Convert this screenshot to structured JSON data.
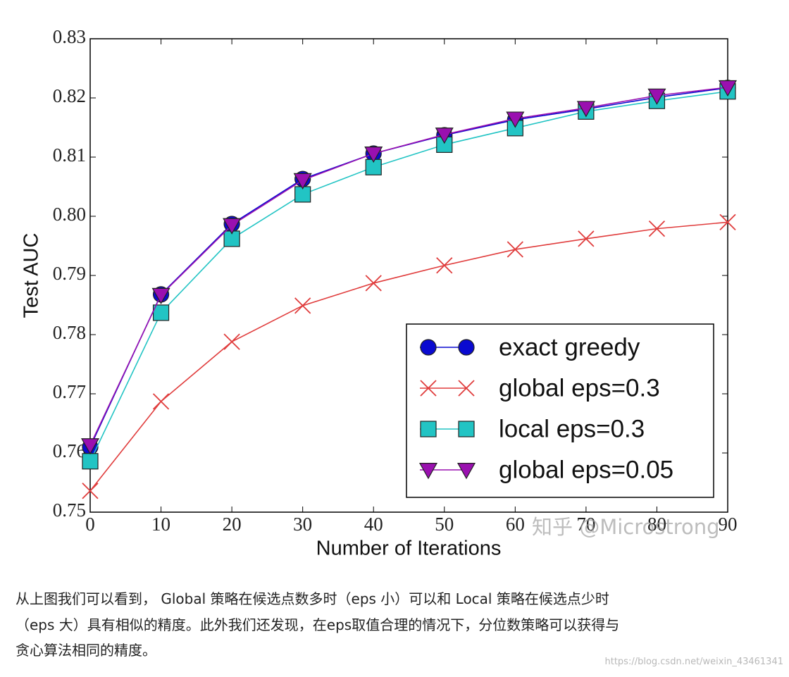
{
  "chart_data": {
    "type": "line",
    "xlabel": "Number of Iterations",
    "ylabel": "Test AUC",
    "x": [
      0,
      10,
      20,
      30,
      40,
      50,
      60,
      70,
      80,
      90
    ],
    "xlim": [
      0,
      90
    ],
    "xticks": [
      0,
      10,
      20,
      30,
      40,
      50,
      60,
      70,
      80,
      90
    ],
    "ylim": [
      0.75,
      0.83
    ],
    "yticks": [
      0.75,
      0.76,
      0.77,
      0.78,
      0.79,
      {
        "value": 0.8,
        "label": "0.80"
      },
      0.81,
      0.82,
      0.83
    ],
    "legend": "lower right",
    "grid": false,
    "series": [
      {
        "name": "exact greedy",
        "color": "#0a0ad0",
        "marker": "o",
        "values": [
          0.761,
          0.7868,
          0.7987,
          0.8063,
          0.8106,
          0.8137,
          0.8163,
          0.8181,
          0.8201,
          0.8217
        ]
      },
      {
        "name": "global eps=0.3",
        "color": "#e03c3c",
        "marker": "x",
        "values": [
          0.7536,
          0.7687,
          0.7788,
          0.7849,
          0.7887,
          0.7917,
          0.7944,
          0.7962,
          0.7979,
          0.799
        ]
      },
      {
        "name": "local eps=0.3",
        "color": "#22c4c4",
        "marker": "s",
        "values": [
          0.7586,
          0.7837,
          0.7962,
          0.8037,
          0.8083,
          0.8121,
          0.8149,
          0.8177,
          0.8195,
          0.8211
        ]
      },
      {
        "name": "global eps=0.05",
        "color": "#9a10b0",
        "marker": "v",
        "values": [
          0.7613,
          0.7867,
          0.7985,
          0.8061,
          0.8106,
          0.8138,
          0.8165,
          0.8183,
          0.8204,
          0.8218
        ]
      }
    ],
    "watermark": "知乎 @Microstrong"
  },
  "paragraph": [
    "从上图我们可以看到， Global 策略在候选点数多时（eps 小）可以和 Local 策略在候选点少时",
    "（eps 大）具有相似的精度。此外我们还发现，在eps取值合理的情况下，分位数策略可以获得与",
    "贪心算法相同的精度。"
  ],
  "footer_watermark": "https://blog.csdn.net/weixin_43461341"
}
